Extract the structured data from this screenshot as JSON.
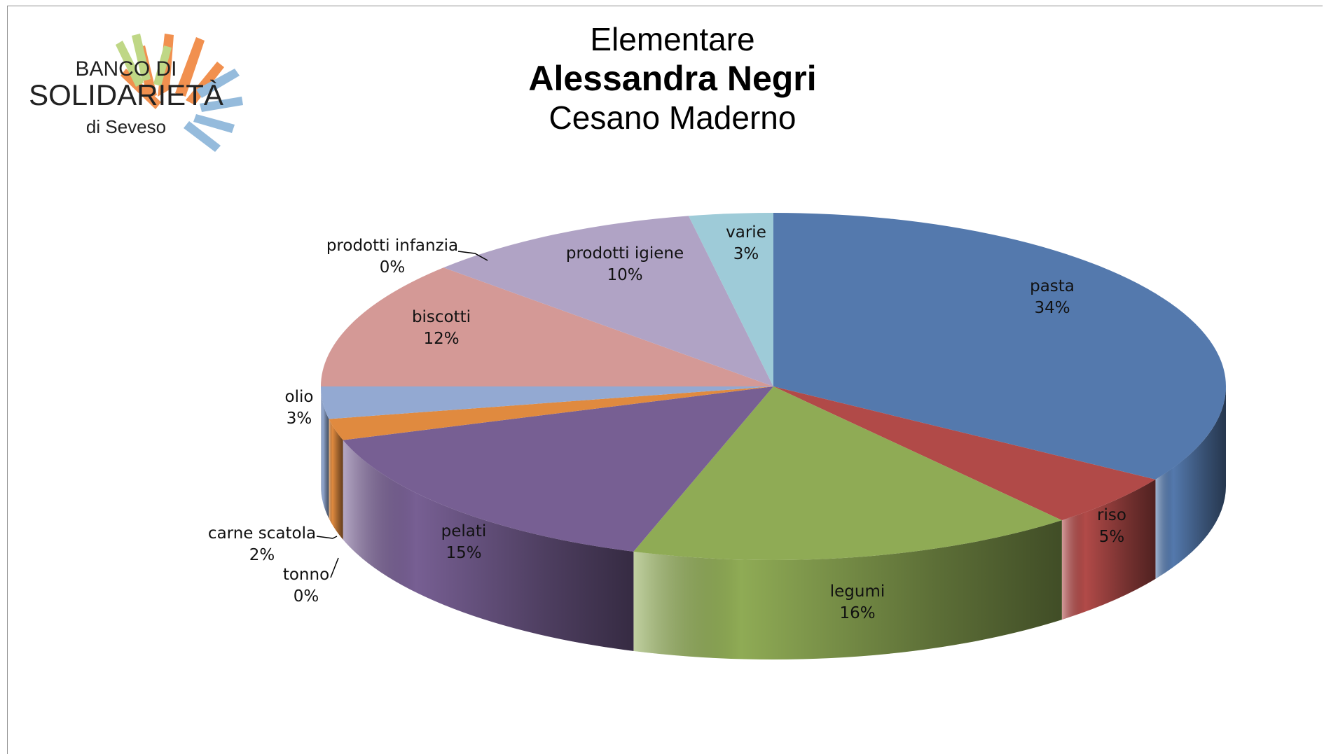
{
  "header": {
    "line1": "Elementare",
    "line2": "Alessandra Negri",
    "line3": "Cesano Maderno"
  },
  "logo": {
    "line1": "BANCO DI",
    "line2": "SOLIDARIETÀ",
    "line3": "di Seveso",
    "icon": "hands-logo-icon"
  },
  "chart_data": {
    "type": "pie",
    "style": "3d",
    "title": "",
    "slices": [
      {
        "label": "pasta",
        "value": 34,
        "display": "34%",
        "color": "#5479ad"
      },
      {
        "label": "riso",
        "value": 5,
        "display": "5%",
        "color": "#b14a48"
      },
      {
        "label": "legumi",
        "value": 16,
        "display": "16%",
        "color": "#8fab55"
      },
      {
        "label": "pelati",
        "value": 15,
        "display": "15%",
        "color": "#775f93"
      },
      {
        "label": "tonno",
        "value": 0,
        "display": "0%",
        "color": "#4aa3b8"
      },
      {
        "label": "carne scatola",
        "value": 2,
        "display": "2%",
        "color": "#e08a3f"
      },
      {
        "label": "olio",
        "value": 3,
        "display": "3%",
        "color": "#93a9d2"
      },
      {
        "label": "biscotti",
        "value": 12,
        "display": "12%",
        "color": "#d49996"
      },
      {
        "label": "prodotti infanzia",
        "value": 0,
        "display": "0%",
        "color": "#c3d69b"
      },
      {
        "label": "prodotti igiene",
        "value": 10,
        "display": "10%",
        "color": "#b0a3c5"
      },
      {
        "label": "varie",
        "value": 3,
        "display": "3%",
        "color": "#9ecbd8"
      }
    ]
  }
}
